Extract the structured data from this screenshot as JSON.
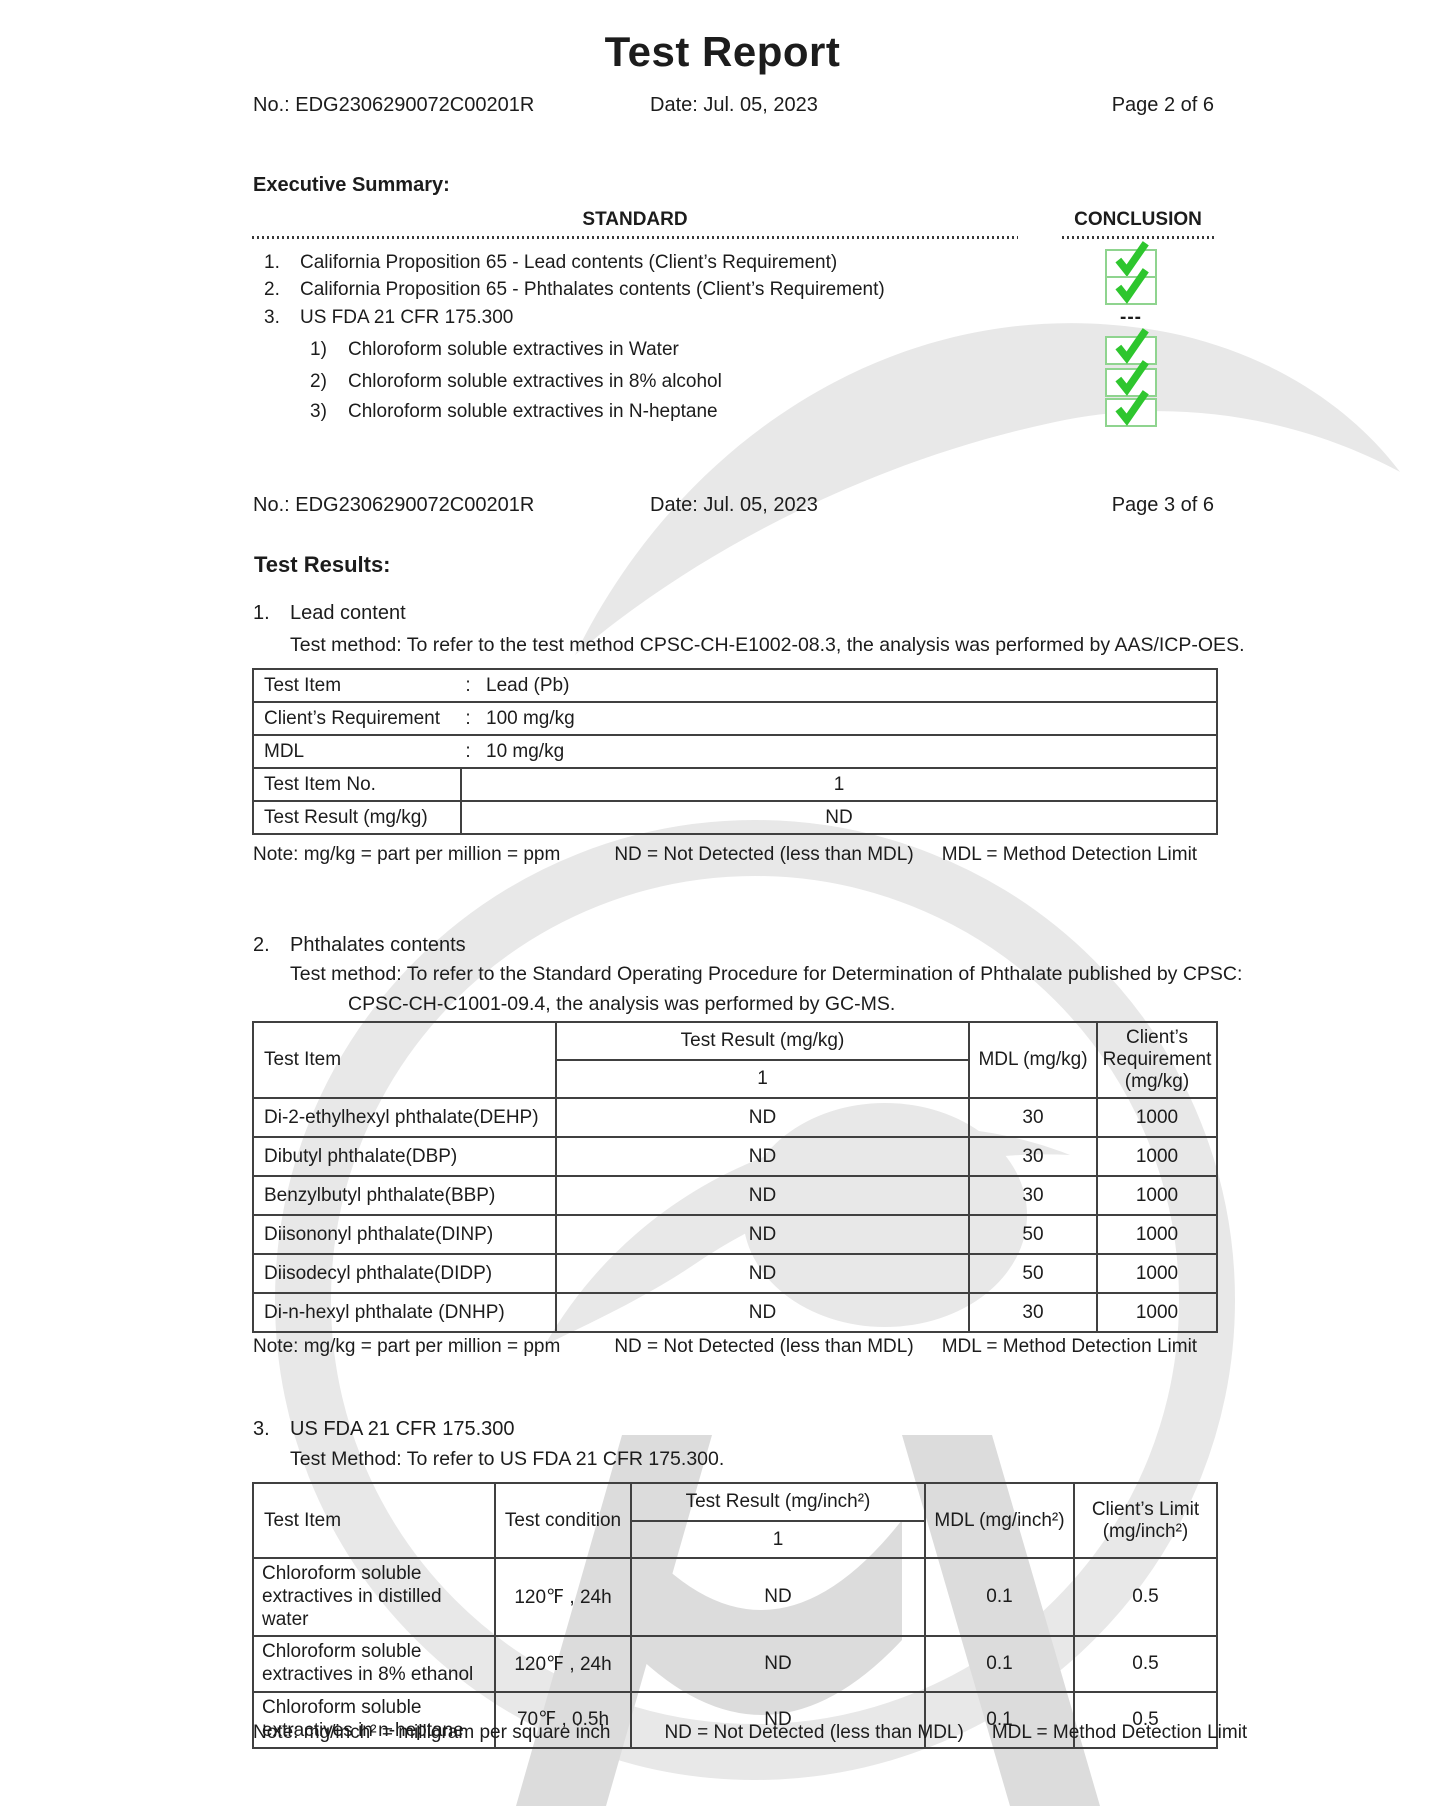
{
  "title": "Test Report",
  "page_headers": [
    {
      "no": "No.: EDG2306290072C00201R",
      "date": "Date: Jul. 05, 2023",
      "page": "Page 2 of 6"
    },
    {
      "no": "No.: EDG2306290072C00201R",
      "date": "Date: Jul. 05, 2023",
      "page": "Page 3 of 6"
    }
  ],
  "executive_summary": {
    "heading": "Executive Summary:",
    "standard_col": "STANDARD",
    "conclusion_col": "CONCLUSION",
    "dashes": "---",
    "items": [
      {
        "num": "1.",
        "text": "California Proposition 65 - Lead contents (Client’s Requirement)",
        "conclusion": "check",
        "indent": false
      },
      {
        "num": "2.",
        "text": "California Proposition 65 - Phthalates contents (Client’s Requirement)",
        "conclusion": "check",
        "indent": false
      },
      {
        "num": "3.",
        "text": "US FDA 21 CFR 175.300",
        "conclusion": "dashes",
        "indent": false
      },
      {
        "num": "1)",
        "text": "Chloroform soluble extractives in Water",
        "conclusion": "check",
        "indent": true
      },
      {
        "num": "2)",
        "text": "Chloroform soluble extractives in 8% alcohol",
        "conclusion": "check",
        "indent": true
      },
      {
        "num": "3)",
        "text": "Chloroform soluble extractives in N-heptane",
        "conclusion": "check",
        "indent": true
      }
    ]
  },
  "test_results_heading": "Test Results:",
  "section1": {
    "num": "1.",
    "title": "Lead content",
    "method": "Test method: To refer to the test method CPSC-CH-E1002-08.3, the analysis was performed by AAS/ICP-OES.",
    "colon": ":",
    "info_rows": [
      {
        "label": "Test Item",
        "value": "Lead (Pb)"
      },
      {
        "label": "Client’s Requirement",
        "value": "100 mg/kg"
      },
      {
        "label": "MDL",
        "value": "10 mg/kg"
      }
    ],
    "result_rows": [
      {
        "label": "Test Item No.",
        "value": "1"
      },
      {
        "label": "Test Result (mg/kg)",
        "value": "ND"
      }
    ],
    "note_parts": [
      "Note: mg/kg = part per million = ppm",
      "ND = Not Detected (less than MDL)",
      "MDL = Method Detection Limit"
    ]
  },
  "section2": {
    "num": "2.",
    "title": "Phthalates contents",
    "method_line1": "Test method: To refer to the Standard Operating Procedure for Determination of Phthalate published by CPSC:",
    "method_line2": "CPSC-CH-C1001-09.4, the analysis was performed by GC-MS.",
    "table": {
      "col_item": "Test Item",
      "col_result": "Test Result (mg/kg)",
      "col_sub": "1",
      "col_mdl": "MDL (mg/kg)",
      "col_client": "Client’s Requirement (mg/kg)",
      "rows": [
        {
          "item": "Di-2-ethylhexyl phthalate(DEHP)",
          "result": "ND",
          "mdl": "30",
          "client": "1000"
        },
        {
          "item": "Dibutyl phthalate(DBP)",
          "result": "ND",
          "mdl": "30",
          "client": "1000"
        },
        {
          "item": "Benzylbutyl phthalate(BBP)",
          "result": "ND",
          "mdl": "30",
          "client": "1000"
        },
        {
          "item": "Diisononyl phthalate(DINP)",
          "result": "ND",
          "mdl": "50",
          "client": "1000"
        },
        {
          "item": "Diisodecyl phthalate(DIDP)",
          "result": "ND",
          "mdl": "50",
          "client": "1000"
        },
        {
          "item": "Di-n-hexyl phthalate (DNHP)",
          "result": "ND",
          "mdl": "30",
          "client": "1000"
        }
      ]
    },
    "note_parts": [
      "Note: mg/kg = part per million = ppm",
      "ND = Not Detected (less than MDL)",
      "MDL = Method Detection Limit"
    ]
  },
  "section3": {
    "num": "3.",
    "title": "US FDA 21 CFR 175.300",
    "method": "Test Method: To refer to US FDA 21 CFR 175.300.",
    "table": {
      "col_item": "Test Item",
      "col_condition": "Test condition",
      "col_result": "Test Result (mg/inch²)",
      "col_sub": "1",
      "col_mdl": "MDL (mg/inch²)",
      "col_client": "Client’s Limit (mg/inch²)",
      "rows": [
        {
          "item": "Chloroform soluble extractives in distilled water",
          "condition": "120℉ , 24h",
          "result": "ND",
          "mdl": "0.1",
          "client": "0.5"
        },
        {
          "item": "Chloroform soluble extractives in 8% ethanol",
          "condition": "120℉ , 24h",
          "result": "ND",
          "mdl": "0.1",
          "client": "0.5"
        },
        {
          "item": "Chloroform soluble extractives in n-heptane",
          "condition": "70℉ , 0.5h",
          "result": "ND",
          "mdl": "0.1",
          "client": "0.5"
        }
      ]
    },
    "note_parts": [
      "Note: mg/inch² = milligram per square inch",
      "ND = Not Detected (less than MDL)",
      "MDL = Method Detection Limit"
    ]
  },
  "colors": {
    "check_green": "#2ec62e",
    "check_box_border": "#8fd48f",
    "watermark_gray": "#e8e8e8",
    "watermark_dark": "#dcdcdc"
  }
}
